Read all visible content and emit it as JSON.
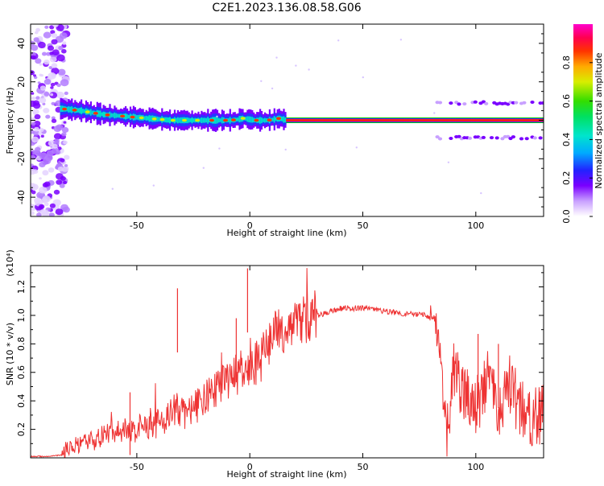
{
  "figure": {
    "title": "C2E1.2023.136.08.58.G06"
  },
  "chart_data": [
    {
      "type": "heatmap",
      "xlabel": "Height of straight line (km)",
      "ylabel": "Frequency (Hz)",
      "xlim": [
        -97,
        130
      ],
      "ylim": [
        -50,
        50
      ],
      "xticks": [
        -50,
        0,
        50,
        100
      ],
      "yticks": [
        -40,
        -20,
        0,
        20,
        40
      ],
      "colorbar": {
        "label": "Normalized spectral amplitude",
        "range": [
          0.0,
          1.0
        ],
        "ticks": [
          0.0,
          0.2,
          0.4,
          0.6,
          0.8
        ],
        "tick_labels": [
          "0.0",
          "0.2",
          "0.4",
          "0.6",
          "0.8"
        ]
      },
      "main_trace": {
        "x": [
          -83,
          -75,
          -65,
          -55,
          -45,
          -35,
          -25,
          -15,
          -8,
          -3,
          2,
          8,
          13,
          16,
          130
        ],
        "frequency": [
          6,
          5,
          3,
          2,
          1,
          0,
          0,
          0,
          0,
          1,
          0,
          0,
          1,
          0,
          0
        ]
      },
      "sidebands": {
        "x_range": [
          83,
          130
        ],
        "frequencies": [
          9,
          -9
        ]
      }
    },
    {
      "type": "line",
      "xlabel": "Height of straight line (km)",
      "ylabel": "SNR (10 * v/v)",
      "y_multiplier": "(x10⁴)",
      "xlim": [
        -97,
        130
      ],
      "ylim": [
        0,
        1.35
      ],
      "xticks": [
        -50,
        0,
        50,
        100
      ],
      "yticks": [
        0.2,
        0.4,
        0.6,
        0.8,
        1.0,
        1.2
      ],
      "ytick_labels": [
        "0.2",
        "0.4",
        "0.6",
        "0.8",
        "1.0",
        "1.2"
      ],
      "series": [
        {
          "color": "#ee3333",
          "x": [
            -97,
            -90,
            -83,
            -80,
            -75,
            -70,
            -60,
            -50,
            -40,
            -32,
            -30,
            -20,
            -10,
            -5,
            0,
            5,
            10,
            20,
            30,
            40,
            50,
            60,
            70,
            78,
            82,
            84,
            86,
            88,
            90,
            95,
            100,
            105,
            110,
            115,
            120,
            125,
            130
          ],
          "y": [
            0.01,
            0.01,
            0.02,
            0.08,
            0.08,
            0.12,
            0.18,
            0.2,
            0.25,
            0.35,
            0.3,
            0.4,
            0.55,
            0.6,
            0.6,
            0.7,
            0.85,
            0.95,
            1.0,
            1.05,
            1.05,
            1.03,
            1.01,
            1.0,
            0.95,
            0.75,
            0.35,
            0.15,
            0.6,
            0.45,
            0.35,
            0.55,
            0.35,
            0.5,
            0.35,
            0.3,
            0.3
          ]
        }
      ],
      "peaks": [
        {
          "x": -53,
          "y": 0.46
        },
        {
          "x": -32,
          "y": 1.19
        },
        {
          "x": -1,
          "y": 1.33
        },
        {
          "x": -6,
          "y": 0.98
        },
        {
          "x": 101,
          "y": 0.87
        },
        {
          "x": 110,
          "y": 0.8
        }
      ]
    }
  ]
}
